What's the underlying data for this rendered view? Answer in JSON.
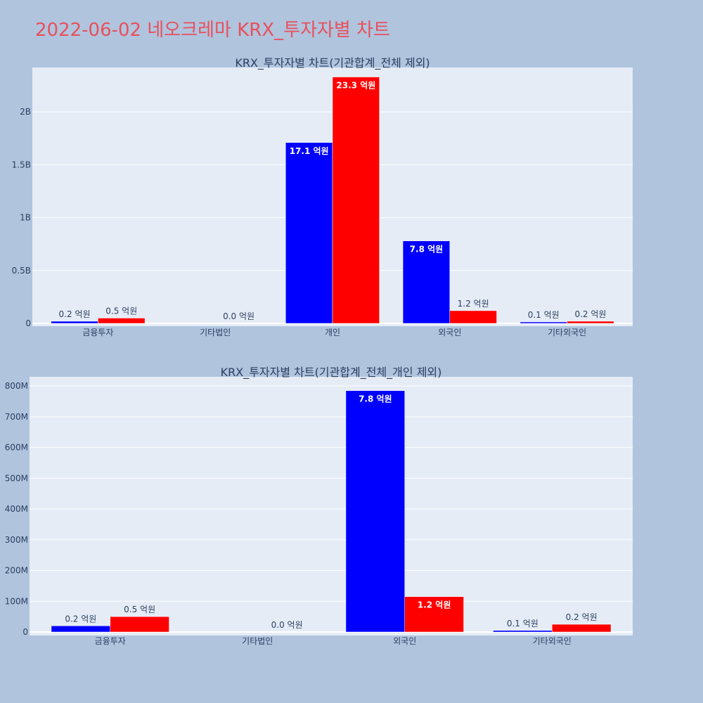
{
  "page": {
    "title": "2022-06-02 네오크레마 KRX_투자자별 차트",
    "background": "#b0c4de",
    "plot_background": "#e5ecf6",
    "buy_color": "#0000ff",
    "sell_color": "#ff0000"
  },
  "chart_data": [
    {
      "type": "bar",
      "title": "KRX_투자자별 차트(기관합계_전체 제외)",
      "categories": [
        "금융투자",
        "기타법인",
        "개인",
        "외국인",
        "기타외국인"
      ],
      "series": [
        {
          "color": "#0000ff",
          "values": [
            20000000,
            0,
            1710000000,
            780000000,
            10000000
          ],
          "labels": [
            "0.2 억원",
            "",
            "17.1 억원",
            "7.8 억원",
            "0.1 억원"
          ]
        },
        {
          "color": "#ff0000",
          "values": [
            50000000,
            0,
            2330000000,
            120000000,
            20000000
          ],
          "labels": [
            "0.5 억원",
            "0.0 억원",
            "23.3 억원",
            "1.2 억원",
            "0.2 억원"
          ]
        }
      ],
      "yticks": [
        0,
        500000000,
        1000000000,
        1500000000,
        2000000000
      ],
      "ytick_labels": [
        "0",
        "0.5B",
        "1B",
        "1.5B",
        "2B"
      ],
      "ylim": [
        0,
        2420000000
      ],
      "grid": true
    },
    {
      "type": "bar",
      "title": "KRX_투자자별 차트(기관합계_전체_개인 제외)",
      "categories": [
        "금융투자",
        "기타법인",
        "외국인",
        "기타외국인"
      ],
      "series": [
        {
          "color": "#0000ff",
          "values": [
            20000000,
            0,
            785000000,
            5000000
          ],
          "labels": [
            "0.2 억원",
            "",
            "7.8 억원",
            "0.1 억원"
          ]
        },
        {
          "color": "#ff0000",
          "values": [
            50000000,
            0,
            115000000,
            25000000
          ],
          "labels": [
            "0.5 억원",
            "0.0 억원",
            "1.2 억원",
            "0.2 억원"
          ]
        }
      ],
      "yticks": [
        0,
        100000000,
        200000000,
        300000000,
        400000000,
        500000000,
        600000000,
        700000000,
        800000000
      ],
      "ytick_labels": [
        "0",
        "100M",
        "200M",
        "300M",
        "400M",
        "500M",
        "600M",
        "700M",
        "800M"
      ],
      "ylim": [
        0,
        830000000
      ],
      "grid": true
    }
  ]
}
